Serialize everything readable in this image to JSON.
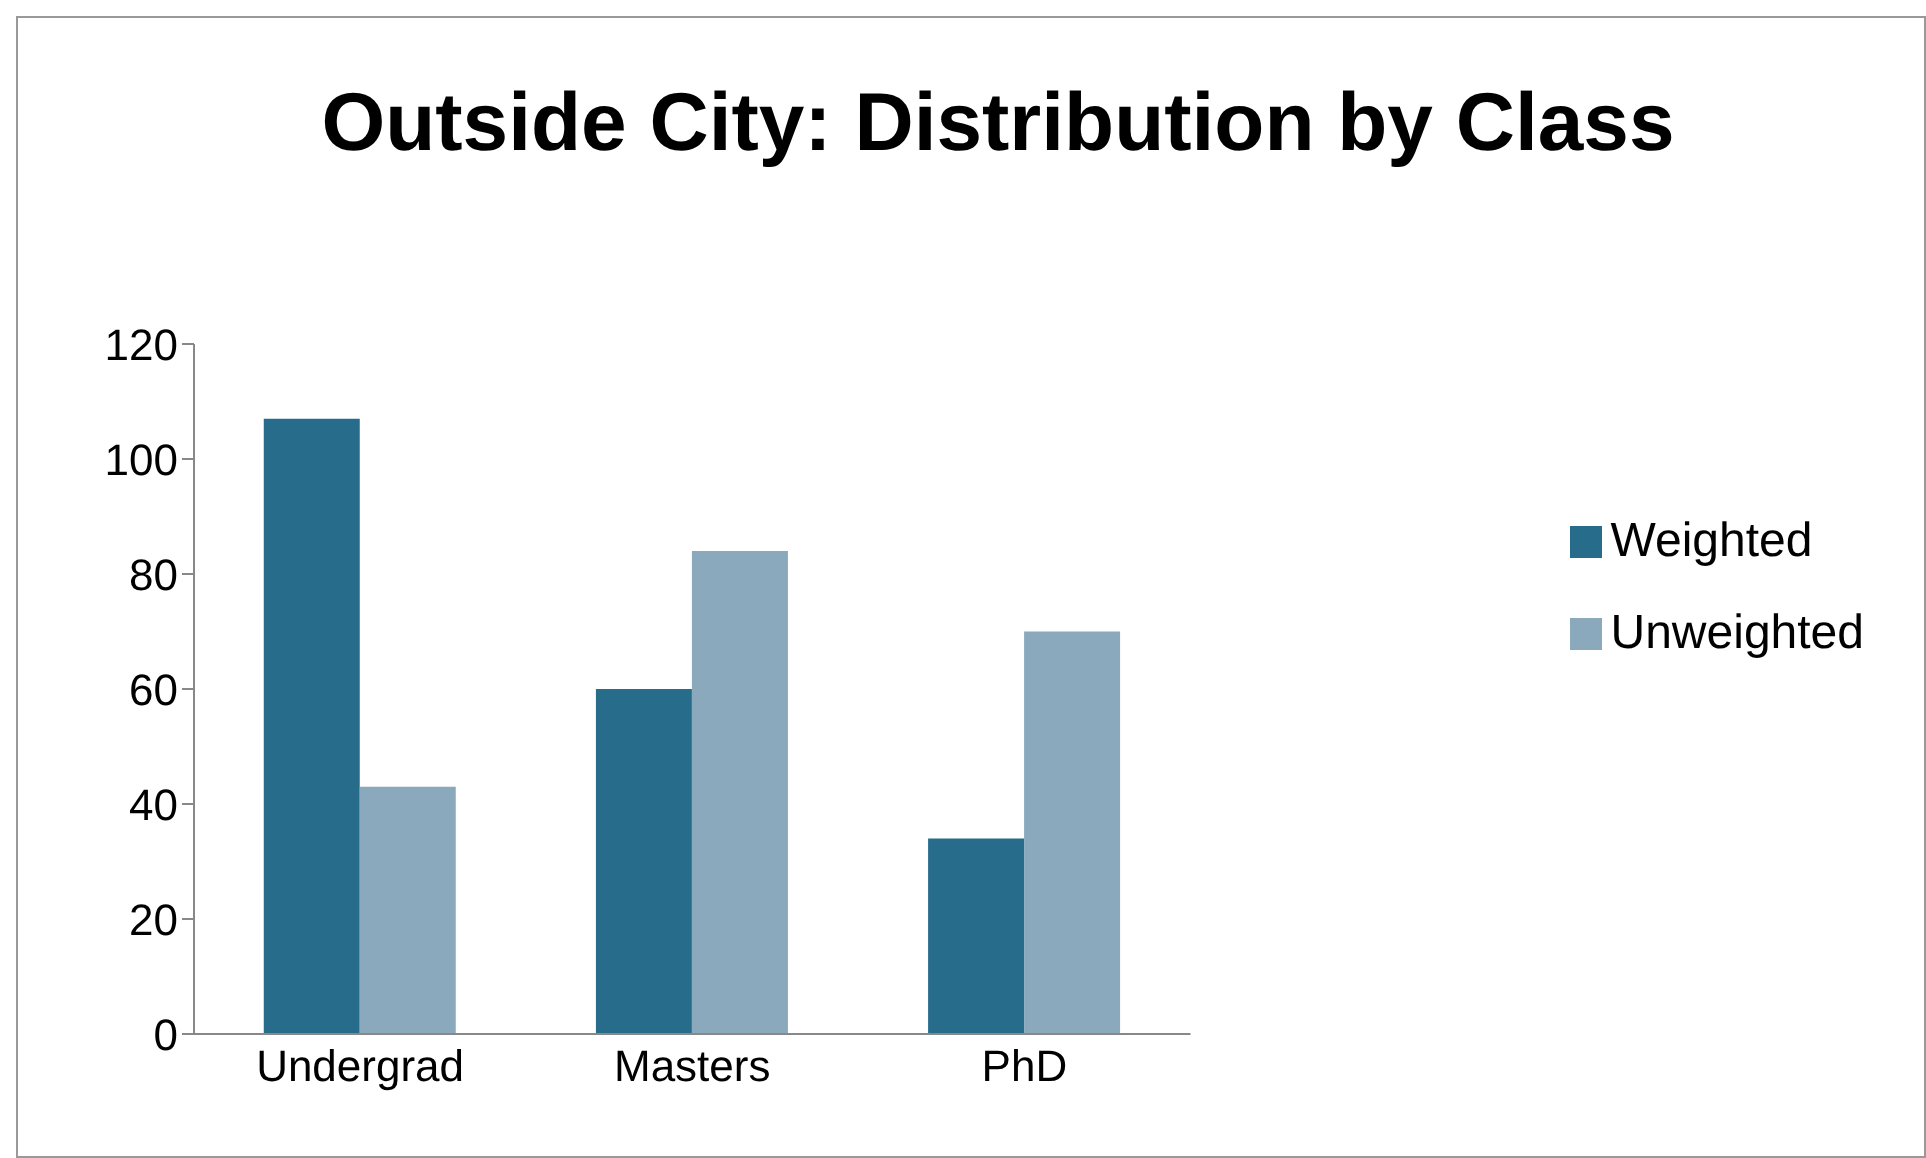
{
  "chart_data": {
    "type": "bar",
    "title": "Outside City: Distribution by Class",
    "categories": [
      "Undergrad",
      "Masters",
      "PhD"
    ],
    "series": [
      {
        "name": "Weighted",
        "color": "#276d8b",
        "values": [
          107,
          60,
          34
        ]
      },
      {
        "name": "Unweighted",
        "color": "#8aa9bd",
        "values": [
          43,
          84,
          70
        ]
      }
    ],
    "ylim": [
      0,
      120
    ],
    "yticks": [
      0,
      20,
      40,
      60,
      80,
      100,
      120
    ],
    "grid": false,
    "legend": "right"
  }
}
